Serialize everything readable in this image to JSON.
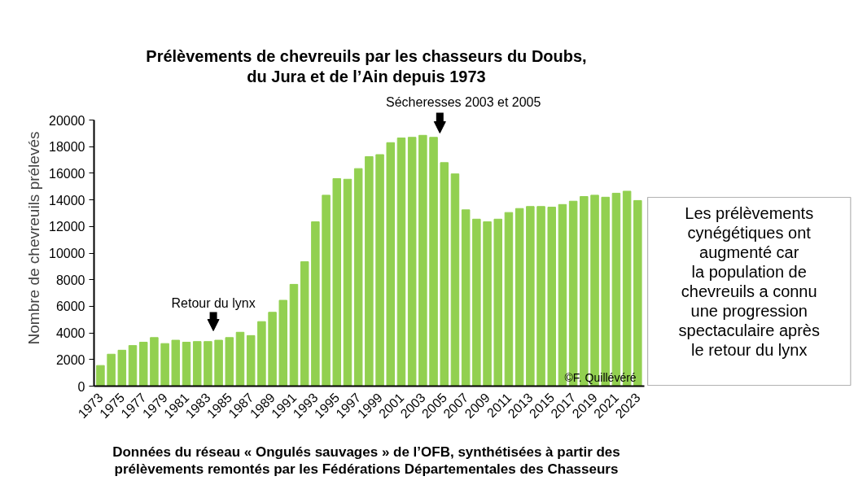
{
  "chart_data": {
    "type": "bar",
    "title": "Prélèvements de chevreuils par les chasseurs du Doubs,\ndu Jura et de l’Ain depuis 1973",
    "ylabel": "Nombre de chevreuils prélevés",
    "categories": [
      "1973",
      null,
      "1975",
      null,
      "1977",
      null,
      "1979",
      null,
      "1981",
      null,
      "1983",
      null,
      "1985",
      null,
      "1987",
      null,
      "1989",
      null,
      "1991",
      null,
      "1993",
      null,
      "1995",
      null,
      "1997",
      null,
      "1999",
      null,
      "2001",
      null,
      "2003",
      null,
      "2005",
      null,
      "2007",
      null,
      "2009",
      null,
      "2011",
      null,
      "2013",
      null,
      "2015",
      null,
      "2017",
      null,
      "2019",
      null,
      "2021",
      null,
      "2023"
    ],
    "values": [
      1550,
      2400,
      2700,
      3050,
      3300,
      3650,
      3200,
      3450,
      3300,
      3350,
      3350,
      3450,
      3650,
      4050,
      3800,
      4850,
      5550,
      6450,
      7650,
      9350,
      12350,
      14350,
      15600,
      15550,
      16350,
      17250,
      17400,
      18300,
      18650,
      18700,
      18850,
      18700,
      16800,
      15950,
      13250,
      12550,
      12350,
      12550,
      13050,
      13350,
      13500,
      13500,
      13450,
      13650,
      13900,
      14250,
      14350,
      14200,
      14500,
      14650,
      13950
    ],
    "color": "#92d050",
    "ylim": [
      0,
      20000
    ],
    "yticks": [
      0,
      2000,
      4000,
      6000,
      8000,
      10000,
      12000,
      14000,
      16000,
      18000,
      20000
    ],
    "grid": false,
    "annotations": [
      "Retour du lynx",
      "Sécheresses 2003 et 2005",
      "Les prélèvements\ncynégétiques ont\naugmenté car\nla population de\nchevreuils a connu\nune progression\nspectaculaire après\nle retour du lynx",
      "©F. Quillévéré",
      "Données du réseau « Ongulés sauvages » de l’OFB, synthétisées à partir des\nprélèvements remontés par les Fédérations Départementales des Chasseurs"
    ]
  }
}
